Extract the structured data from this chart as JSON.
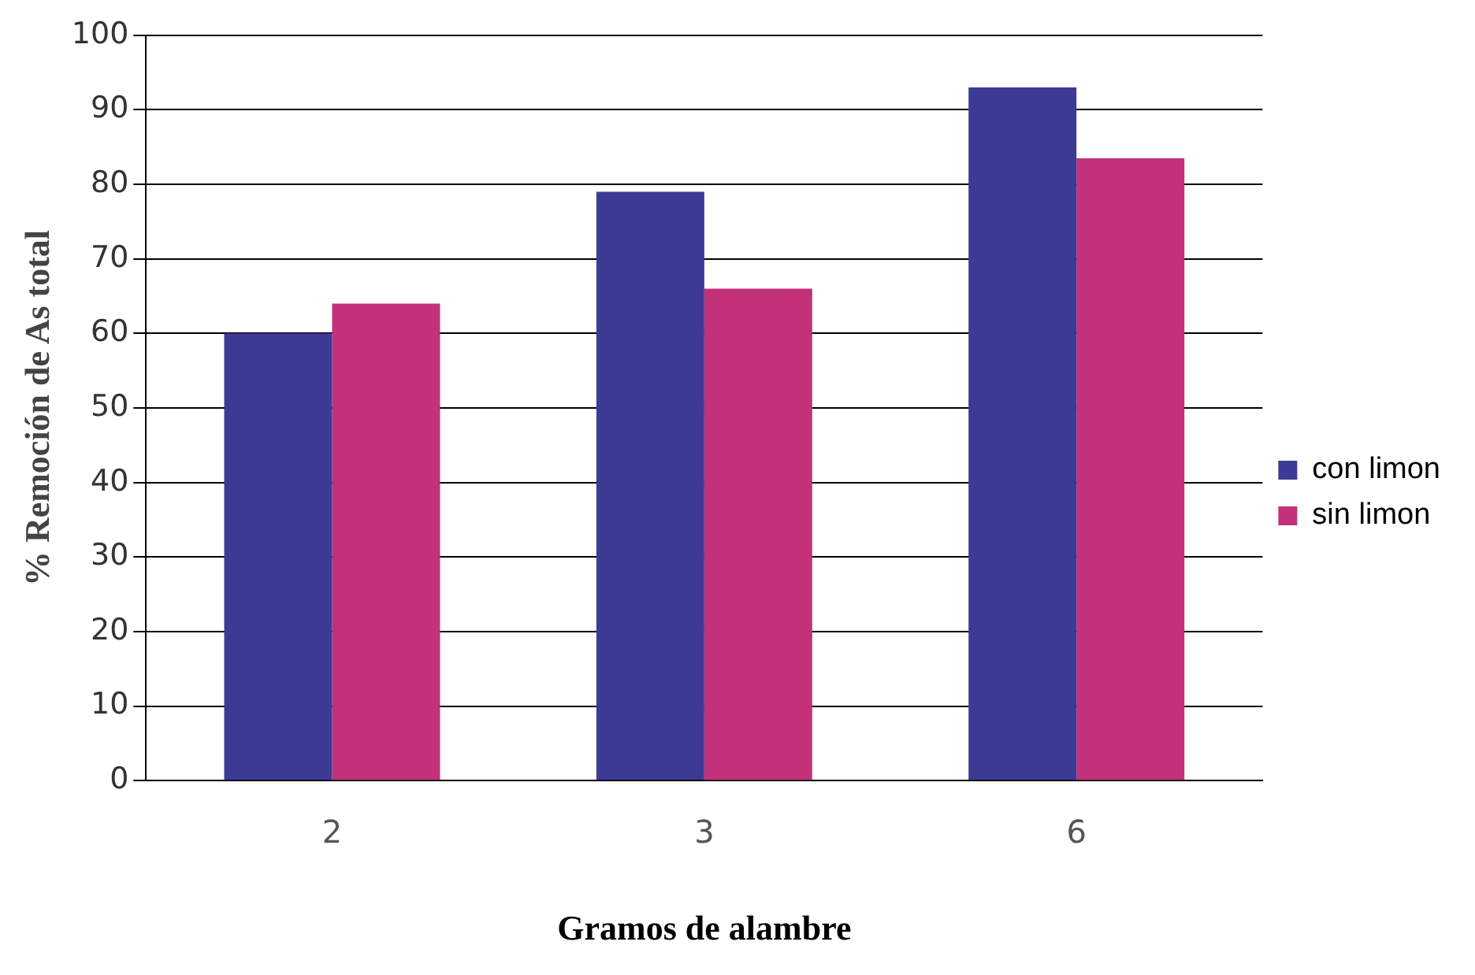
{
  "chart_data": {
    "type": "bar",
    "xlabel": "Gramos de alambre",
    "ylabel": "% Remoción de As total",
    "categories": [
      "2",
      "3",
      "6"
    ],
    "series": [
      {
        "name": "con limon",
        "color": "#3d3a96",
        "values": [
          60,
          79,
          93
        ]
      },
      {
        "name": "sin limon",
        "color": "#c2317a",
        "values": [
          64,
          66,
          83.5
        ]
      }
    ],
    "ylim": [
      0,
      100
    ],
    "yticks": [
      0,
      10,
      20,
      30,
      40,
      50,
      60,
      70,
      80,
      90,
      100
    ],
    "grid": "y",
    "legend": "right"
  }
}
